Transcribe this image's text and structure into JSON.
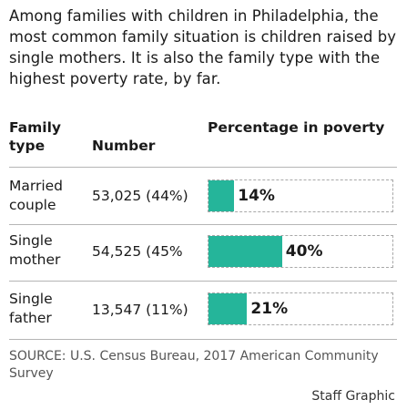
{
  "intro": "Among families with children in Philadelphia, the most common family situation is children raised by single mothers. It is also the family type with the highest poverty rate, by far.",
  "headers": {
    "type": "Family type",
    "number": "Number",
    "pct": "Percentage in poverty"
  },
  "chart_data": {
    "type": "bar",
    "categories": [
      "Married couple",
      "Single mother",
      "Single father"
    ],
    "numbers": [
      "53,025 (44%)",
      "54,525 (45%",
      "13,547 (11%)"
    ],
    "values": [
      14,
      40,
      21
    ],
    "value_labels": [
      "14%",
      "40%",
      "21%"
    ],
    "xlim": [
      0,
      100
    ],
    "bar_color": "#25b59a"
  },
  "source": "SOURCE: U.S. Census Bureau, 2017 American Community Survey",
  "credit": "Staff Graphic"
}
